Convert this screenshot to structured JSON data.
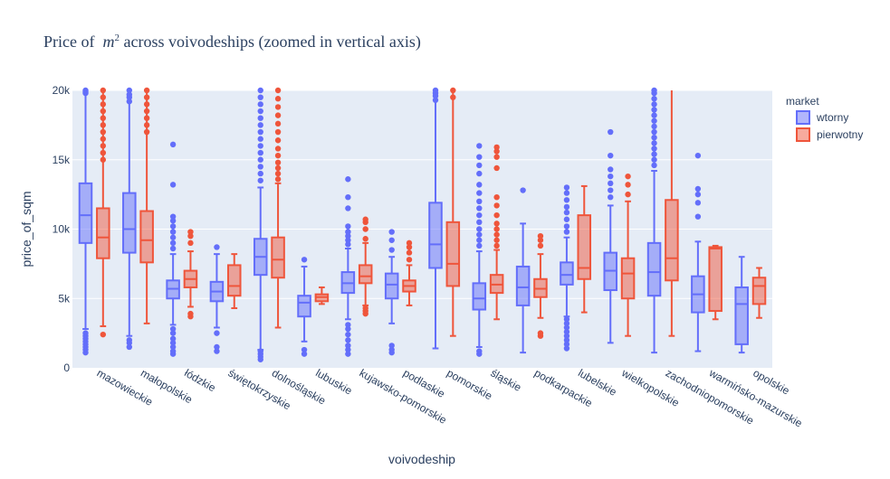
{
  "chart_data": {
    "type": "box",
    "title": {
      "prefix": "Price of",
      "symbol": "m",
      "superscript": "2",
      "suffix": "across voivodeships (zoomed in vertical axis)"
    },
    "xlabel": "voivodeship",
    "ylabel": "price_of_sqm",
    "ylim": [
      0,
      20000
    ],
    "yticks": [
      {
        "value": 0,
        "label": "0"
      },
      {
        "value": 5000,
        "label": "5k"
      },
      {
        "value": 10000,
        "label": "10k"
      },
      {
        "value": 15000,
        "label": "15k"
      },
      {
        "value": 20000,
        "label": "20k"
      }
    ],
    "grid": true,
    "legend": {
      "title": "market",
      "placement": "top-right"
    },
    "categories": [
      "mazowieckie",
      "małopolskie",
      "łódzkie",
      "świętokrzyskie",
      "dolnośląskie",
      "lubuskie",
      "kujawsko-pomorskie",
      "podlaskie",
      "pomorskie",
      "śląskie",
      "podkarpackie",
      "lubelskie",
      "wielkopolskie",
      "zachodniopomorskie",
      "warmińsko-mazurskie",
      "opolskie"
    ],
    "series": [
      {
        "name": "wtorny",
        "color": "#636efa",
        "boxes": [
          {
            "lowerfence": 2800,
            "q1": 9000,
            "median": 11000,
            "q3": 13300,
            "upperfence": 20000,
            "outliers": [
              1100,
              1300,
              1500,
              1700,
              1900,
              2100,
              2300,
              2500,
              19800,
              19900,
              20000
            ]
          },
          {
            "lowerfence": 2300,
            "q1": 8300,
            "median": 10000,
            "q3": 12600,
            "upperfence": 20000,
            "outliers": [
              1500,
              1800,
              2000,
              19200,
              19500,
              19700,
              20000
            ]
          },
          {
            "lowerfence": 3100,
            "q1": 5000,
            "median": 5700,
            "q3": 6300,
            "upperfence": 8200,
            "outliers": [
              1000,
              1200,
              1500,
              1800,
              2100,
              2500,
              2800,
              8600,
              9000,
              9400,
              9800,
              10200,
              10600,
              10900,
              13200,
              16100
            ]
          },
          {
            "lowerfence": 2900,
            "q1": 4800,
            "median": 5500,
            "q3": 6200,
            "upperfence": 8200,
            "outliers": [
              1200,
              1500,
              2500,
              8700
            ]
          },
          {
            "lowerfence": 1300,
            "q1": 6700,
            "median": 8000,
            "q3": 9300,
            "upperfence": 13000,
            "outliers": [
              600,
              800,
              1000,
              1200,
              13500,
              14000,
              14500,
              15000,
              15500,
              16000,
              16500,
              17000,
              17500,
              18000,
              18500,
              19000,
              19500,
              20000
            ]
          },
          {
            "lowerfence": 1900,
            "q1": 3700,
            "median": 4700,
            "q3": 5200,
            "upperfence": 7300,
            "outliers": [
              1000,
              1300,
              7800
            ]
          },
          {
            "lowerfence": 3500,
            "q1": 5400,
            "median": 6100,
            "q3": 6900,
            "upperfence": 8600,
            "outliers": [
              1000,
              1300,
              1600,
              2000,
              2400,
              2800,
              3100,
              8900,
              9200,
              9500,
              9800,
              10200,
              11500,
              12300,
              13600
            ]
          },
          {
            "lowerfence": 3200,
            "q1": 5000,
            "median": 6000,
            "q3": 6800,
            "upperfence": 8000,
            "outliers": [
              1100,
              1300,
              1600,
              8500,
              9200,
              9800
            ]
          },
          {
            "lowerfence": 1400,
            "q1": 7200,
            "median": 8900,
            "q3": 11900,
            "upperfence": 20000,
            "outliers": [
              19300,
              19600,
              19800,
              20000
            ]
          },
          {
            "lowerfence": 1500,
            "q1": 4200,
            "median": 5000,
            "q3": 6100,
            "upperfence": 8400,
            "outliers": [
              1000,
              1200,
              8800,
              9200,
              9600,
              10000,
              10500,
              11000,
              11500,
              12000,
              12600,
              13200,
              14000,
              14600,
              15200,
              16000
            ]
          },
          {
            "lowerfence": 1100,
            "q1": 4500,
            "median": 5800,
            "q3": 7300,
            "upperfence": 10400,
            "outliers": [
              12800
            ]
          },
          {
            "lowerfence": 3700,
            "q1": 6000,
            "median": 6700,
            "q3": 7600,
            "upperfence": 9400,
            "outliers": [
              1400,
              1700,
              2000,
              2300,
              2600,
              2900,
              3200,
              3500,
              9800,
              10200,
              10700,
              11200,
              11600,
              12100,
              12600,
              13000
            ]
          },
          {
            "lowerfence": 1800,
            "q1": 5600,
            "median": 7000,
            "q3": 8300,
            "upperfence": 11700,
            "outliers": [
              12300,
              12800,
              13300,
              13800,
              14300,
              15300,
              17000
            ]
          },
          {
            "lowerfence": 1100,
            "q1": 5200,
            "median": 6900,
            "q3": 9000,
            "upperfence": 14200,
            "outliers": [
              14600,
              15000,
              15400,
              15800,
              16200,
              16600,
              17000,
              17400,
              17800,
              18200,
              18600,
              19000,
              19400,
              19800,
              20000
            ]
          },
          {
            "lowerfence": 1200,
            "q1": 4000,
            "median": 5300,
            "q3": 6600,
            "upperfence": 9100,
            "outliers": [
              10900,
              11900,
              12500,
              12900,
              15300
            ]
          },
          {
            "lowerfence": 1100,
            "q1": 1700,
            "median": 4600,
            "q3": 5800,
            "upperfence": 8000,
            "outliers": []
          }
        ]
      },
      {
        "name": "pierwotny",
        "color": "#ef553b",
        "boxes": [
          {
            "lowerfence": 3000,
            "q1": 7900,
            "median": 9400,
            "q3": 11500,
            "upperfence": 20000,
            "outliers": [
              2400,
              15000,
              15500,
              16000,
              16500,
              17000,
              17500,
              18000,
              18500,
              19000,
              19500,
              20000
            ]
          },
          {
            "lowerfence": 3200,
            "q1": 7600,
            "median": 9200,
            "q3": 11300,
            "upperfence": 20000,
            "outliers": [
              17000,
              17500,
              18000,
              18500,
              19000,
              19500,
              20000
            ]
          },
          {
            "lowerfence": 4400,
            "q1": 5800,
            "median": 6400,
            "q3": 7000,
            "upperfence": 8400,
            "outliers": [
              3700,
              3900,
              9000,
              9500,
              9800
            ]
          },
          {
            "lowerfence": 4300,
            "q1": 5200,
            "median": 5900,
            "q3": 7400,
            "upperfence": 8200,
            "outliers": []
          },
          {
            "lowerfence": 2900,
            "q1": 6500,
            "median": 7800,
            "q3": 9400,
            "upperfence": 13300,
            "outliers": [
              13600,
              14000,
              14400,
              14800,
              15300,
              15800,
              16400,
              17000,
              17600,
              18200,
              18800,
              19400,
              20000
            ]
          },
          {
            "lowerfence": 4600,
            "q1": 4800,
            "median": 5100,
            "q3": 5300,
            "upperfence": 5800,
            "outliers": []
          },
          {
            "lowerfence": 4500,
            "q1": 6100,
            "median": 6600,
            "q3": 7400,
            "upperfence": 9000,
            "outliers": [
              3900,
              4100,
              4300,
              9300,
              10000,
              10500,
              10700
            ]
          },
          {
            "lowerfence": 4500,
            "q1": 5500,
            "median": 5900,
            "q3": 6300,
            "upperfence": 7400,
            "outliers": [
              7800,
              8300,
              8700,
              9000
            ]
          },
          {
            "lowerfence": 2300,
            "q1": 5900,
            "median": 7500,
            "q3": 10500,
            "upperfence": 20000,
            "outliers": [
              19500,
              20000
            ]
          },
          {
            "lowerfence": 3500,
            "q1": 5400,
            "median": 6000,
            "q3": 6700,
            "upperfence": 8500,
            "outliers": [
              8800,
              9200,
              9600,
              10000,
              10400,
              11000,
              11700,
              12300,
              14400,
              15200,
              15600,
              15900
            ]
          },
          {
            "lowerfence": 3600,
            "q1": 5100,
            "median": 5700,
            "q3": 6400,
            "upperfence": 8200,
            "outliers": [
              2300,
              2500,
              8800,
              9200,
              9500
            ]
          },
          {
            "lowerfence": 4000,
            "q1": 6400,
            "median": 7200,
            "q3": 11000,
            "upperfence": 13100,
            "outliers": []
          },
          {
            "lowerfence": 2300,
            "q1": 5000,
            "median": 6800,
            "q3": 7900,
            "upperfence": 12000,
            "outliers": [
              12500,
              13200,
              13800
            ]
          },
          {
            "lowerfence": 2300,
            "q1": 6300,
            "median": 7900,
            "q3": 12100,
            "upperfence": 20000,
            "outliers": []
          },
          {
            "lowerfence": 3500,
            "q1": 4100,
            "median": 8600,
            "q3": 8700,
            "upperfence": 8800,
            "outliers": []
          },
          {
            "lowerfence": 3600,
            "q1": 4600,
            "median": 5900,
            "q3": 6500,
            "upperfence": 7200,
            "outliers": []
          }
        ]
      }
    ]
  }
}
